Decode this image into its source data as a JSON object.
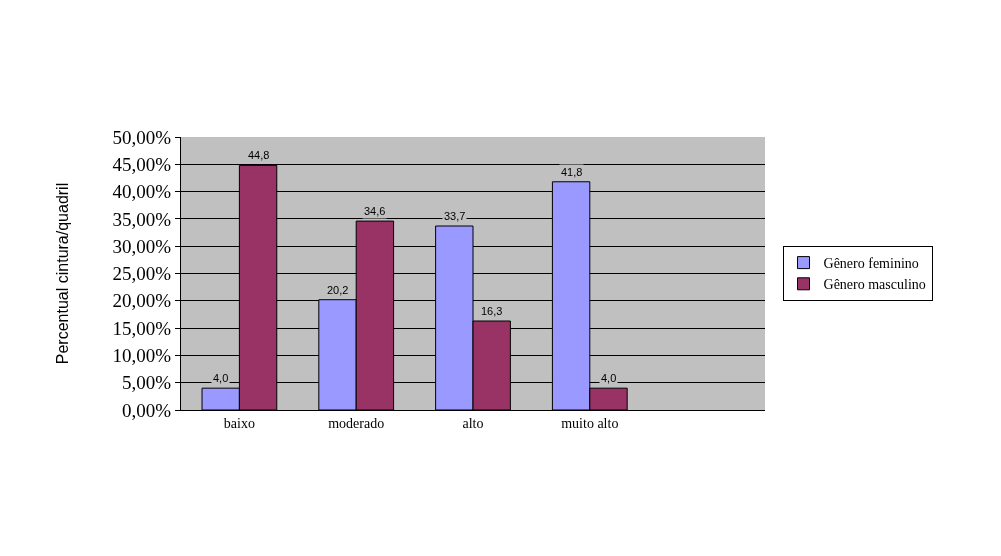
{
  "chart_data": {
    "type": "bar",
    "ylabel": "Percentual cintura/quadril",
    "categories": [
      "baixo",
      "moderado",
      "alto",
      "muito alto",
      null
    ],
    "series": [
      {
        "name": "Gênero feminino",
        "color": "#9999ff",
        "values": [
          4.0,
          20.2,
          33.7,
          41.8,
          null
        ],
        "value_labels": [
          "4,0",
          "20,2",
          "33,7",
          "41,8",
          null
        ]
      },
      {
        "name": "Gênero masculino",
        "color": "#993366",
        "values": [
          44.8,
          34.6,
          16.3,
          4.0,
          null
        ],
        "value_labels": [
          "44,8",
          "34,6",
          "16,3",
          "4,0",
          null
        ]
      }
    ],
    "ylim": [
      0,
      50
    ],
    "yticks": [
      {
        "value": 0,
        "label": "0,00%"
      },
      {
        "value": 5,
        "label": "5,00%"
      },
      {
        "value": 10,
        "label": "10,00%"
      },
      {
        "value": 15,
        "label": "15,00%"
      },
      {
        "value": 20,
        "label": "20,00%"
      },
      {
        "value": 25,
        "label": "25,00%"
      },
      {
        "value": 30,
        "label": "30,00%"
      },
      {
        "value": 35,
        "label": "35,00%"
      },
      {
        "value": 40,
        "label": "40,00%"
      },
      {
        "value": 45,
        "label": "45,00%"
      },
      {
        "value": 50,
        "label": "50,00%"
      }
    ],
    "grid": "y",
    "legend": "right"
  }
}
